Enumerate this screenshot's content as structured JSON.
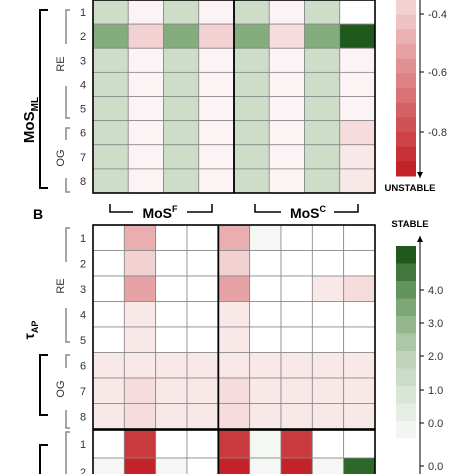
{
  "chart_data": [
    {
      "type": "heatmap",
      "y_group_label": "MoS",
      "y_group_sub": "ML",
      "x_group_left": "MoS",
      "x_group_left_sup": "F",
      "x_group_right": "MoS",
      "x_group_right_sup": "C",
      "row_group_top": "RE",
      "row_group_bottom": "OG",
      "rows": [
        "1",
        "2",
        "3",
        "4",
        "5",
        "6",
        "7",
        "8"
      ],
      "values": [
        [
          1.8,
          -0.05,
          1.8,
          -0.05,
          1.8,
          -0.05,
          1.8,
          0.0
        ],
        [
          3.5,
          -0.2,
          3.5,
          -0.2,
          3.5,
          -0.15,
          3.5,
          5.0
        ],
        [
          1.8,
          -0.05,
          1.8,
          -0.05,
          1.8,
          -0.05,
          1.8,
          -0.05
        ],
        [
          1.8,
          -0.05,
          1.8,
          -0.05,
          1.8,
          -0.05,
          1.8,
          -0.05
        ],
        [
          1.8,
          -0.05,
          1.8,
          -0.05,
          1.8,
          -0.05,
          1.8,
          -0.05
        ],
        [
          1.8,
          -0.05,
          1.8,
          -0.05,
          1.8,
          -0.05,
          1.8,
          -0.15
        ],
        [
          1.8,
          -0.05,
          1.8,
          -0.05,
          1.8,
          -0.05,
          1.8,
          -0.1
        ],
        [
          1.8,
          -0.05,
          1.8,
          -0.05,
          1.8,
          -0.05,
          1.8,
          -0.1
        ]
      ]
    },
    {
      "type": "heatmap",
      "panel_letter": "B",
      "y_group_label": "τ",
      "y_group_sub": "AP",
      "row_group_top": "RE",
      "row_group_bottom": "OG",
      "rows": [
        "1",
        "2",
        "3",
        "4",
        "5",
        "6",
        "7",
        "8"
      ],
      "values": [
        [
          0.0,
          -0.35,
          0.0,
          0.0,
          -0.35,
          0.4,
          0.0,
          0.0,
          0.0
        ],
        [
          0.0,
          -0.2,
          0.0,
          0.0,
          -0.2,
          0.0,
          0.0,
          0.0,
          0.0
        ],
        [
          0.0,
          -0.4,
          0.0,
          0.0,
          -0.4,
          0.0,
          0.0,
          -0.1,
          -0.15
        ],
        [
          0.0,
          -0.1,
          0.0,
          0.0,
          -0.1,
          0.0,
          0.0,
          0.0,
          0.0
        ],
        [
          0.0,
          -0.1,
          0.0,
          0.0,
          -0.1,
          0.0,
          0.0,
          0.0,
          0.0
        ],
        [
          -0.1,
          -0.1,
          -0.1,
          -0.1,
          -0.1,
          -0.1,
          -0.1,
          -0.1,
          -0.1
        ],
        [
          -0.1,
          -0.15,
          -0.1,
          -0.1,
          -0.15,
          -0.1,
          -0.1,
          -0.1,
          -0.1
        ],
        [
          -0.1,
          -0.15,
          -0.1,
          -0.1,
          -0.15,
          -0.1,
          -0.1,
          -0.1,
          -0.1
        ]
      ]
    },
    {
      "type": "heatmap",
      "partial": true,
      "rows": [
        "1",
        "2"
      ],
      "values": [
        [
          0.0,
          -0.85,
          0.0,
          0.0,
          -0.85,
          0.4,
          -0.85,
          0.0,
          0.0
        ],
        [
          0.4,
          -0.95,
          0.4,
          0.0,
          -0.95,
          0.4,
          -0.95,
          0.4,
          4.8
        ]
      ]
    }
  ],
  "colorbar_top": {
    "ticks": [
      "-0.4",
      "-0.6",
      "-0.8"
    ],
    "end_label": "UNSTABLE",
    "range": [
      -0.95,
      -0.2
    ]
  },
  "colorbar_bottom": {
    "ticks": [
      "4.0",
      "3.0",
      "2.0",
      "1.0",
      "0.0"
    ],
    "top_label": "STABLE",
    "range": [
      0.0,
      5.0
    ]
  },
  "colors": {
    "green_dark": "#1f5a1c",
    "green_mid": "#6a9a63",
    "green_light": "#b9d0b2",
    "red_dark": "#c0171c",
    "white": "#ffffff",
    "grid": "#888888",
    "frame": "#000000"
  }
}
